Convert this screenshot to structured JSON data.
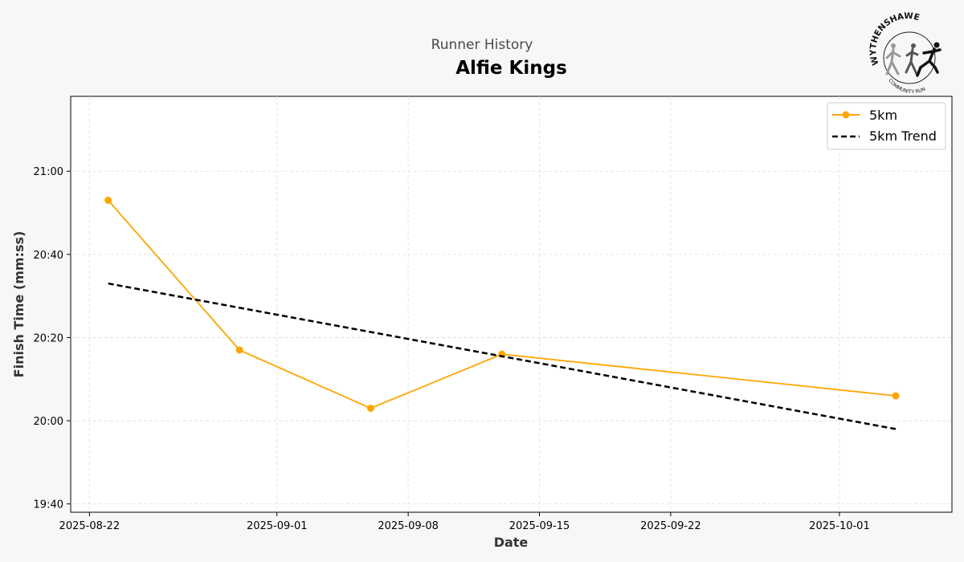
{
  "header": {
    "subtitle": "Runner History",
    "title": "Alfie Kings"
  },
  "logo": {
    "text_top": "WYTHENSHAWE",
    "text_bottom": "COMMUNITY RUN"
  },
  "colors": {
    "series": "#ffa500",
    "trend": "#000000",
    "background": "#f7f7f7",
    "plot_background": "#ffffff",
    "grid": "#dddddd"
  },
  "chart_data": {
    "type": "line",
    "xlabel": "Date",
    "ylabel": "Finish Time (mm:ss)",
    "x_ticks": [
      "2025-08-22",
      "2025-09-01",
      "2025-09-08",
      "2025-09-15",
      "2025-09-22",
      "2025-10-01"
    ],
    "y_ticks": [
      "19:40",
      "20:00",
      "20:20",
      "20:40",
      "21:00"
    ],
    "xlim": [
      "2025-08-21",
      "2025-10-07"
    ],
    "ylim": [
      "19:38",
      "21:18"
    ],
    "grid": true,
    "legend_position": "top-right",
    "series": [
      {
        "name": "5km",
        "style": "line-marker",
        "points": [
          {
            "x": "2025-08-23",
            "y": "20:53"
          },
          {
            "x": "2025-08-30",
            "y": "20:17"
          },
          {
            "x": "2025-09-06",
            "y": "20:03"
          },
          {
            "x": "2025-09-13",
            "y": "20:16"
          },
          {
            "x": "2025-10-04",
            "y": "20:06"
          }
        ]
      },
      {
        "name": "5km Trend",
        "style": "dashed",
        "points": [
          {
            "x": "2025-08-23",
            "y": "20:33"
          },
          {
            "x": "2025-10-04",
            "y": "19:58"
          }
        ]
      }
    ]
  }
}
